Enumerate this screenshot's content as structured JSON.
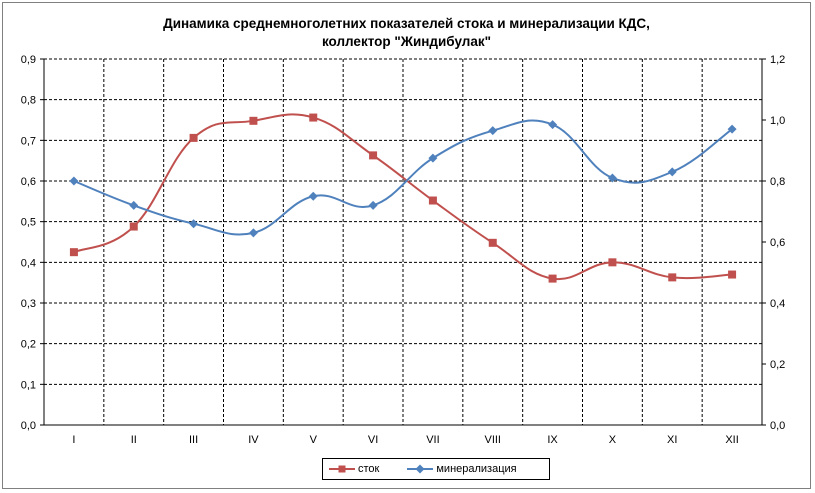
{
  "chart_data": {
    "type": "line",
    "title_line1": "Динамика среднемноголетних показателей стока и минерализации КДС,",
    "title_line2": "коллектор \"Жиндибулак\"",
    "categories": [
      "I",
      "II",
      "III",
      "IV",
      "V",
      "VI",
      "VII",
      "VIII",
      "IX",
      "X",
      "XI",
      "XII"
    ],
    "y_left": {
      "min": 0,
      "max": 0.9,
      "step": 0.1,
      "ticks": [
        "0,0",
        "0,1",
        "0,2",
        "0,3",
        "0,4",
        "0,5",
        "0,6",
        "0,7",
        "0,8",
        "0,9"
      ]
    },
    "y_right": {
      "min": 0,
      "max": 1.2,
      "step": 0.2,
      "ticks": [
        "0,0",
        "0,2",
        "0,4",
        "0,6",
        "0,8",
        "1,0",
        "1,2"
      ]
    },
    "grid": true,
    "legend_position": "bottom",
    "series": [
      {
        "name": "сток",
        "axis": "left",
        "color": "#c0504d",
        "marker": "square",
        "values": [
          0.425,
          0.488,
          0.706,
          0.748,
          0.756,
          0.663,
          0.552,
          0.448,
          0.36,
          0.4,
          0.363,
          0.37
        ]
      },
      {
        "name": "минерализация",
        "axis": "right",
        "color": "#4f81bd",
        "marker": "diamond",
        "values": [
          0.8,
          0.72,
          0.66,
          0.63,
          0.75,
          0.72,
          0.875,
          0.965,
          0.985,
          0.81,
          0.83,
          0.97
        ]
      }
    ]
  }
}
